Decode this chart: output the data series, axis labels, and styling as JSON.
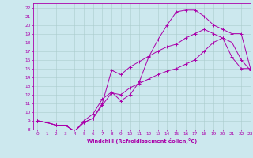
{
  "xlabel": "Windchill (Refroidissement éolien,°C)",
  "bg_color": "#cce8ee",
  "grid_color": "#aacccc",
  "line_color": "#aa00aa",
  "line1_x": [
    0,
    1,
    2,
    3,
    4,
    5,
    6,
    7,
    8,
    9,
    10,
    11,
    12,
    13,
    14,
    15,
    16,
    17,
    18,
    19,
    20,
    21,
    22,
    23
  ],
  "line1_y": [
    9,
    8.8,
    8.5,
    8.5,
    7.8,
    8.8,
    9.3,
    10.8,
    12.2,
    12.0,
    12.8,
    13.3,
    13.8,
    14.3,
    14.7,
    15.0,
    15.5,
    16.0,
    17.0,
    18.0,
    18.5,
    18.0,
    16.0,
    14.8
  ],
  "line2_x": [
    0,
    1,
    2,
    3,
    4,
    5,
    6,
    7,
    8,
    9,
    10,
    11,
    12,
    13,
    14,
    15,
    16,
    17,
    18,
    19,
    20,
    21,
    22,
    23
  ],
  "line2_y": [
    9,
    8.8,
    8.5,
    8.5,
    7.8,
    9.0,
    9.8,
    11.5,
    12.3,
    11.3,
    12.0,
    13.5,
    16.3,
    18.3,
    20.0,
    21.5,
    21.7,
    21.7,
    21.0,
    20.0,
    19.5,
    19.0,
    19.0,
    15.0
  ],
  "line3_x": [
    0,
    1,
    2,
    3,
    4,
    5,
    6,
    7,
    8,
    9,
    10,
    11,
    12,
    13,
    14,
    15,
    16,
    17,
    18,
    19,
    20,
    21,
    22,
    23
  ],
  "line3_y": [
    9,
    8.8,
    8.5,
    8.5,
    7.8,
    8.8,
    9.3,
    11.0,
    14.8,
    14.3,
    15.2,
    15.8,
    16.4,
    17.0,
    17.5,
    17.8,
    18.5,
    19.0,
    19.5,
    19.0,
    18.5,
    16.3,
    15.0,
    15.0
  ],
  "xlim": [
    -0.5,
    23
  ],
  "ylim": [
    8,
    22.5
  ],
  "xticks": [
    0,
    1,
    2,
    3,
    4,
    5,
    6,
    7,
    8,
    9,
    10,
    11,
    12,
    13,
    14,
    15,
    16,
    17,
    18,
    19,
    20,
    21,
    22,
    23
  ],
  "yticks": [
    8,
    9,
    10,
    11,
    12,
    13,
    14,
    15,
    16,
    17,
    18,
    19,
    20,
    21,
    22
  ],
  "marker": "+"
}
